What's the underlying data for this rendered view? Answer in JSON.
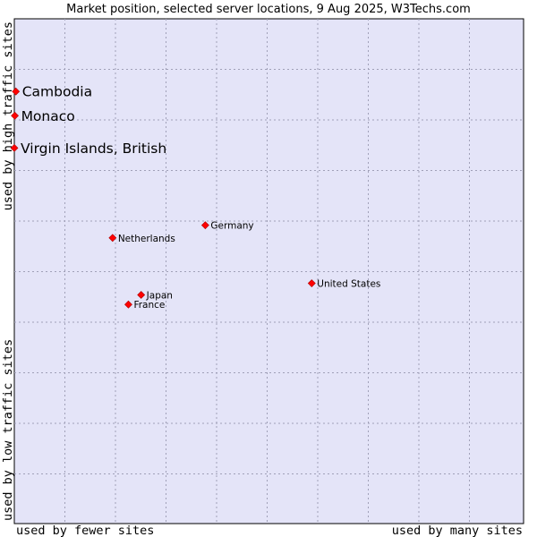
{
  "chart_data": {
    "type": "scatter",
    "title": "Market position, selected server locations, 9 Aug 2025, W3Techs.com",
    "xlabel_left": "used by fewer sites",
    "xlabel_right": "used by many sites",
    "ylabel_bottom": "used by low traffic sites",
    "ylabel_top": "used by high traffic sites",
    "xlim": [
      0,
      100
    ],
    "ylim": [
      0,
      100
    ],
    "grid": true,
    "points": [
      {
        "name": "Cambodia",
        "x": 0.3,
        "y": 85.6,
        "label_size": "large"
      },
      {
        "name": "Monaco",
        "x": 0.1,
        "y": 80.8,
        "label_size": "large"
      },
      {
        "name": "Virgin Islands, British",
        "x": 0.0,
        "y": 74.4,
        "label_size": "large"
      },
      {
        "name": "Germany",
        "x": 37.5,
        "y": 59.1,
        "label_size": "small"
      },
      {
        "name": "Netherlands",
        "x": 19.3,
        "y": 56.6,
        "label_size": "small"
      },
      {
        "name": "United States",
        "x": 58.4,
        "y": 47.6,
        "label_size": "small"
      },
      {
        "name": "Japan",
        "x": 24.9,
        "y": 45.3,
        "label_size": "small"
      },
      {
        "name": "France",
        "x": 22.4,
        "y": 43.4,
        "label_size": "small"
      }
    ]
  },
  "colors": {
    "plot_bg": "#e4e4f8",
    "plot_border": "#000000",
    "marker": "#ff0000",
    "marker_edge": "#aa0000"
  }
}
